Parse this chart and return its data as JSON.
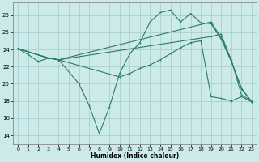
{
  "xlabel": "Humidex (Indice chaleur)",
  "background_color": "#cceaea",
  "grid_color": "#aacfcf",
  "line_color": "#2a7a6a",
  "xlim": [
    -0.5,
    23.5
  ],
  "ylim": [
    13.0,
    29.5
  ],
  "yticks": [
    14,
    16,
    18,
    20,
    22,
    24,
    26,
    28
  ],
  "xticks": [
    0,
    1,
    2,
    3,
    4,
    5,
    6,
    7,
    8,
    9,
    10,
    11,
    12,
    13,
    14,
    15,
    16,
    17,
    18,
    19,
    20,
    21,
    22,
    23
  ],
  "lines": [
    {
      "x": [
        0,
        1,
        2,
        3,
        4,
        6,
        7,
        8,
        9,
        10,
        11,
        12,
        13,
        14,
        15,
        16,
        17,
        18,
        19,
        20,
        21,
        22,
        23
      ],
      "y": [
        24.1,
        23.4,
        22.6,
        23.0,
        22.8,
        20.0,
        17.5,
        14.2,
        17.3,
        21.2,
        23.5,
        24.8,
        27.2,
        28.3,
        28.6,
        27.2,
        28.2,
        27.1,
        27.0,
        25.2,
        22.6,
        19.4,
        17.9
      ]
    },
    {
      "x": [
        0,
        3,
        4,
        19,
        20,
        21,
        22,
        23
      ],
      "y": [
        24.1,
        23.0,
        22.8,
        27.2,
        25.4,
        22.8,
        18.7,
        18.0
      ]
    },
    {
      "x": [
        0,
        3,
        4,
        19,
        20,
        21,
        22,
        23
      ],
      "y": [
        24.1,
        23.0,
        22.8,
        25.5,
        25.8,
        22.6,
        19.5,
        17.9
      ]
    },
    {
      "x": [
        0,
        3,
        4,
        10,
        11,
        12,
        13,
        14,
        15,
        16,
        17,
        18,
        19,
        20,
        21,
        22,
        23
      ],
      "y": [
        24.1,
        23.0,
        22.8,
        20.8,
        21.2,
        21.8,
        22.2,
        22.8,
        23.5,
        24.2,
        24.8,
        25.0,
        18.5,
        18.3,
        18.0,
        18.5,
        17.9
      ]
    }
  ]
}
